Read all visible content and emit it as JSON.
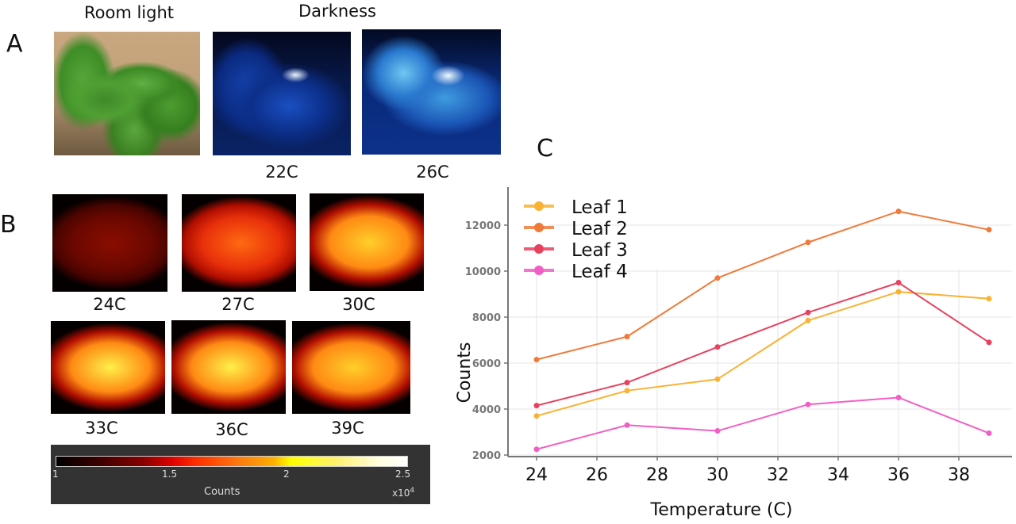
{
  "panels": {
    "A": {
      "letter": "A",
      "room_light_label": "Room light",
      "darkness_label": "Darkness",
      "images": [
        {
          "name": "room-light-photo",
          "caption": ""
        },
        {
          "name": "darkness-22c-image",
          "caption": "22C"
        },
        {
          "name": "darkness-26c-image",
          "caption": "26C"
        }
      ]
    },
    "B": {
      "letter": "B",
      "images": [
        {
          "caption": "24C",
          "intensity": 0.15
        },
        {
          "caption": "27C",
          "intensity": 0.45
        },
        {
          "caption": "30C",
          "intensity": 0.7
        },
        {
          "caption": "33C",
          "intensity": 0.85
        },
        {
          "caption": "36C",
          "intensity": 0.9
        },
        {
          "caption": "39C",
          "intensity": 0.75
        }
      ],
      "colorbar": {
        "label": "Counts",
        "multiplier": "x10",
        "multiplier_exp": "4",
        "ticks": [
          "1",
          "1.5",
          "2",
          "2.5"
        ],
        "range": [
          1,
          2.5
        ]
      }
    },
    "C": {
      "letter": "C"
    }
  },
  "chart_data": {
    "type": "line",
    "title": "",
    "xlabel": "Temperature (C)",
    "ylabel": "Counts",
    "x": [
      24,
      27,
      30,
      33,
      36,
      39
    ],
    "xlim": [
      23.5,
      40
    ],
    "ylim": [
      1800,
      13000
    ],
    "xticks": [
      24,
      26,
      28,
      30,
      32,
      34,
      36,
      38
    ],
    "yticks": [
      2000,
      4000,
      6000,
      8000,
      10000,
      12000
    ],
    "grid": true,
    "legend_position": "top-left",
    "series": [
      {
        "name": "Leaf 1",
        "color": "#f9b233",
        "values": [
          3700,
          4800,
          5300,
          7850,
          9100,
          8800
        ]
      },
      {
        "name": "Leaf 2",
        "color": "#f07a3a",
        "values": [
          6150,
          7150,
          9700,
          11250,
          12600,
          11800
        ]
      },
      {
        "name": "Leaf 3",
        "color": "#e8415f",
        "values": [
          4150,
          5150,
          6700,
          8200,
          9500,
          6900
        ]
      },
      {
        "name": "Leaf 4",
        "color": "#f25fc4",
        "values": [
          2250,
          3300,
          3050,
          4200,
          4500,
          2950
        ]
      }
    ]
  }
}
